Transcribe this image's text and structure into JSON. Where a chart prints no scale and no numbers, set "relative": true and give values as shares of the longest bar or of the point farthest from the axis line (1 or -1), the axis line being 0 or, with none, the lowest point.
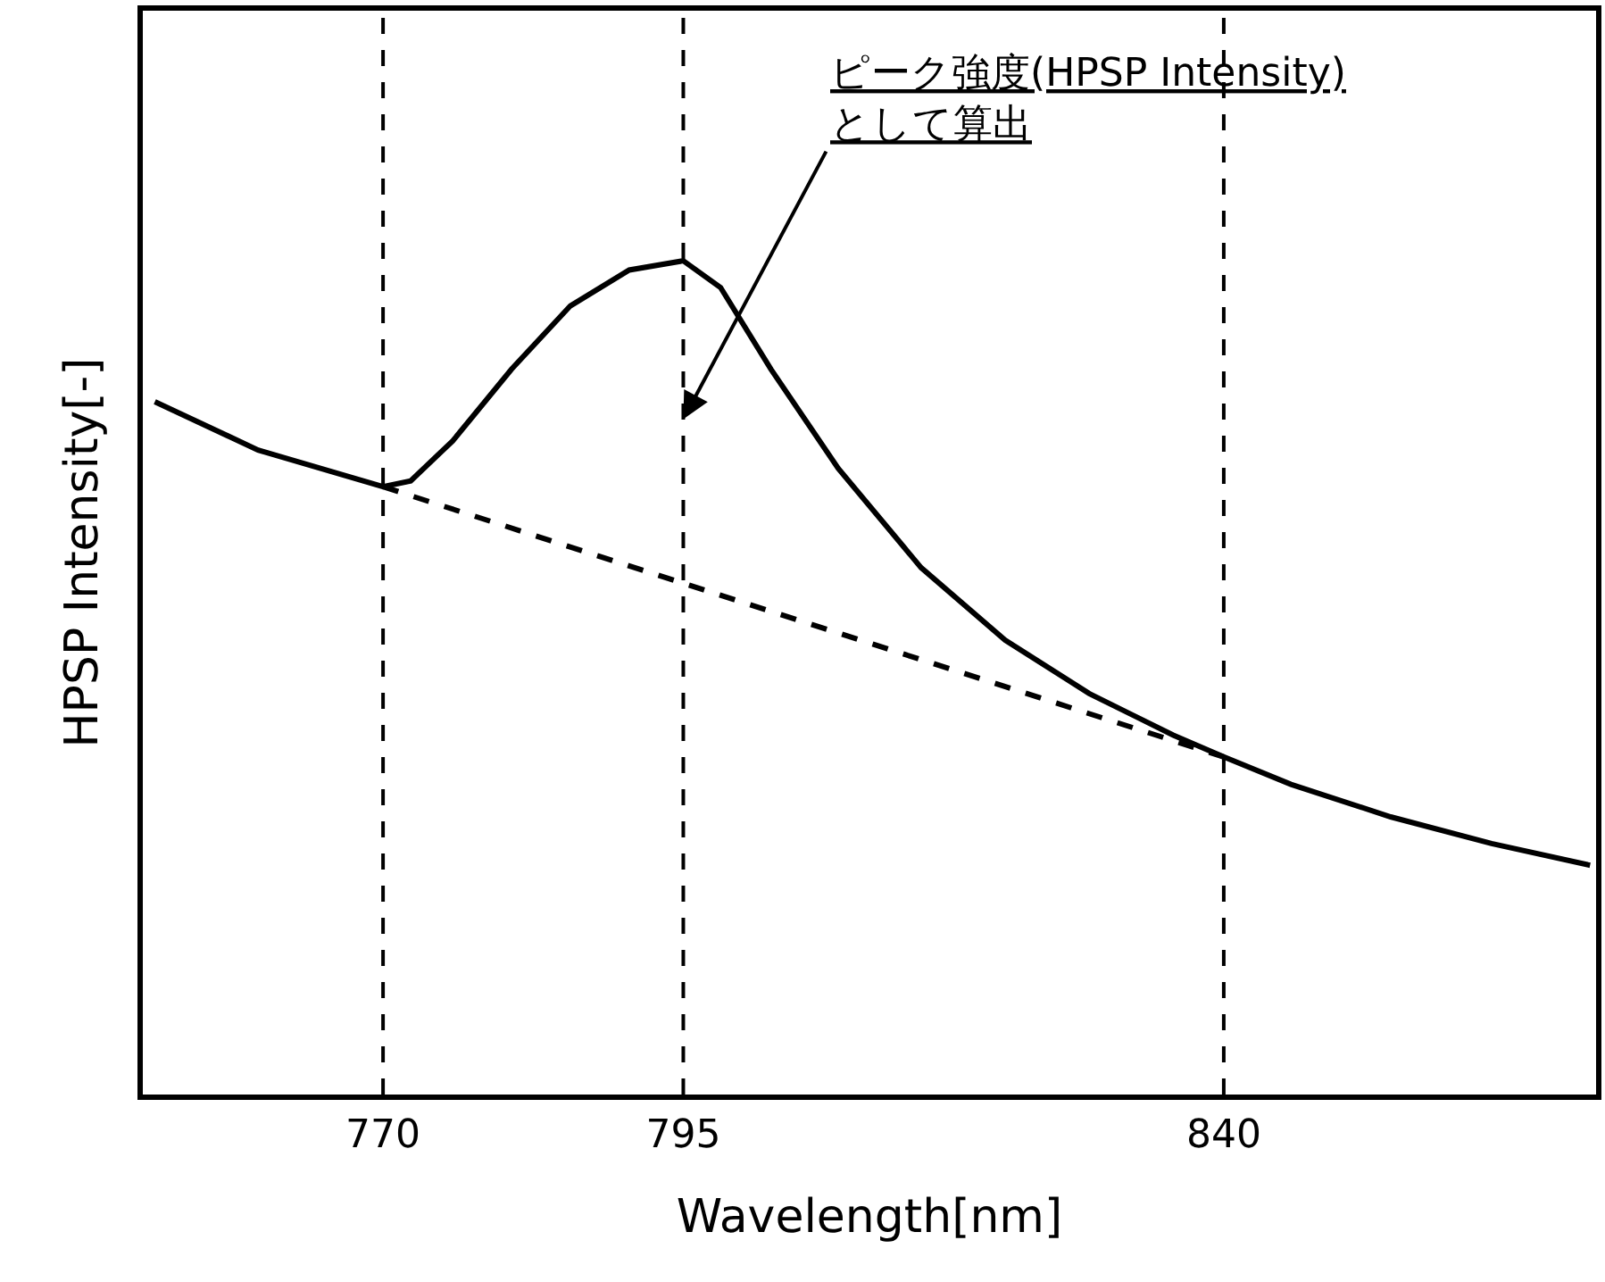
{
  "chart_data": {
    "type": "line",
    "relative": true,
    "xlabel": "Wavelength[nm]",
    "ylabel": "HPSP Intensity[-]",
    "xlim": [
      750,
      871
    ],
    "xticks": [
      770,
      795,
      840
    ],
    "marker": "none",
    "series": [
      {
        "color": "#000000",
        "line_style": "solid",
        "x": [
          751,
          759.6,
          770,
          772.3,
          775.8,
          780.7,
          785.6,
          790.5,
          795,
          798.1,
          802.3,
          807.9,
          814.8,
          821.8,
          828.8,
          835.8,
          840,
          845.6,
          853.9,
          862.3,
          870.5
        ],
        "values": [
          0.831,
          0.773,
          0.729,
          0.736,
          0.784,
          0.87,
          0.946,
          0.989,
          1,
          0.968,
          0.87,
          0.751,
          0.632,
          0.545,
          0.481,
          0.431,
          0.405,
          0.372,
          0.333,
          0.301,
          0.275
        ]
      },
      {
        "color": "#000000",
        "line_style": "dashed",
        "x": [
          770,
          840
        ],
        "values": [
          0.729,
          0.405
        ]
      }
    ],
    "ref_lines": [
      {
        "axis": "x",
        "value": 770,
        "color": "#000000",
        "line_style": "dashed"
      },
      {
        "axis": "x",
        "value": 795,
        "color": "#000000",
        "line_style": "dashed"
      },
      {
        "axis": "x",
        "value": 840,
        "color": "#000000",
        "line_style": "dashed"
      }
    ],
    "annotations": [
      {
        "text": "ピーク強度(HPSP Intensity)\nとして算出",
        "x": 795,
        "y": 0.81
      }
    ]
  }
}
